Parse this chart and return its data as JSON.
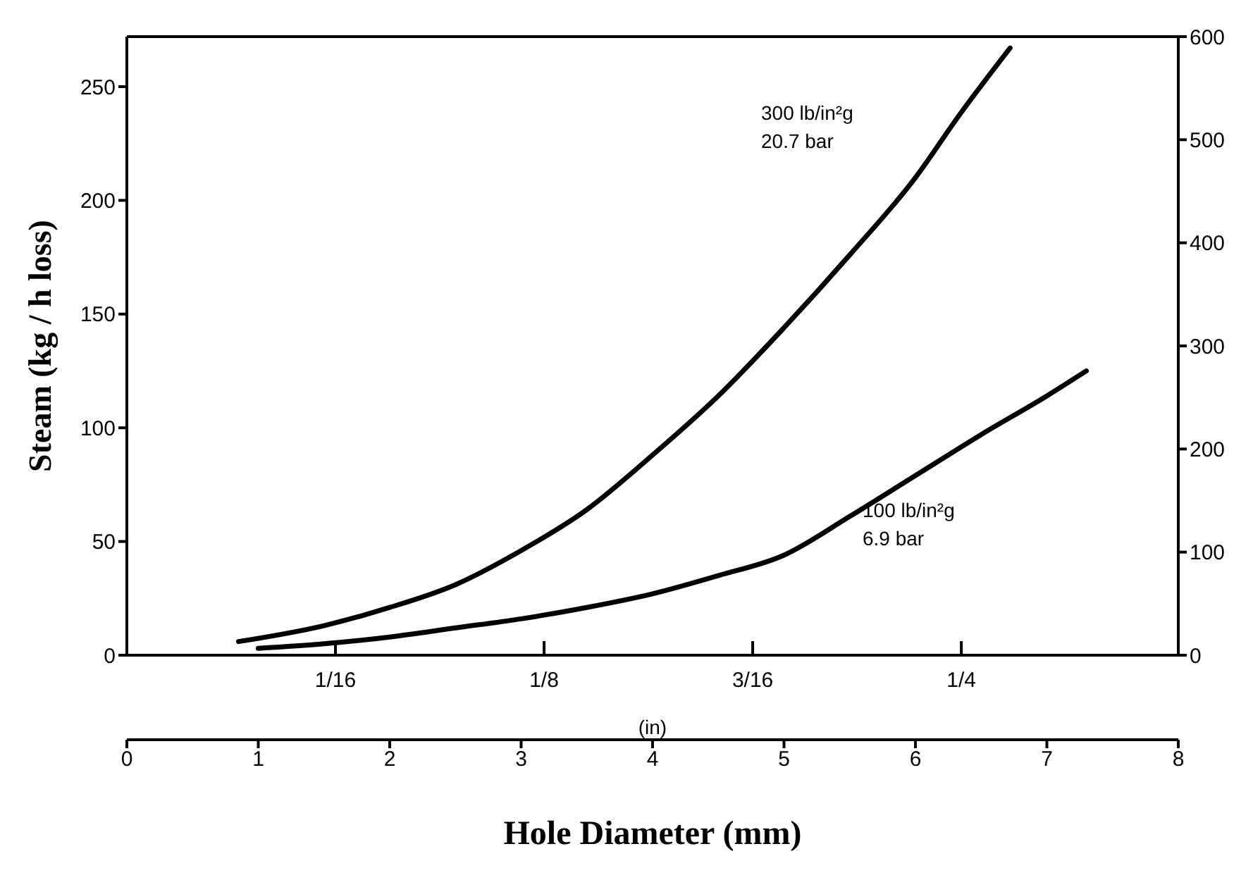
{
  "chart_data": {
    "type": "line",
    "xlabel": "Hole Diameter (mm)",
    "ylabel": "Steam (kg / h loss)",
    "x2label": "(in)",
    "xlim": [
      0,
      8
    ],
    "xticks": [
      0,
      1,
      2,
      3,
      4,
      5,
      6,
      7,
      8
    ],
    "x2lim": [
      0,
      0.315
    ],
    "x2ticks": [
      {
        "value": 0.0625,
        "label": "1/16"
      },
      {
        "value": 0.125,
        "label": "1/8"
      },
      {
        "value": 0.1875,
        "label": "3/16"
      },
      {
        "value": 0.25,
        "label": "1/4"
      }
    ],
    "ylim": [
      0,
      272
    ],
    "yticks": [
      0,
      50,
      100,
      150,
      200,
      250
    ],
    "y2lim": [
      0,
      600
    ],
    "y2ticks": [
      0,
      100,
      200,
      300,
      400,
      500,
      600
    ],
    "marker": "none",
    "line_style": "solid",
    "series": [
      {
        "color": "#000000",
        "x": [
          0.85,
          1.5,
          2,
          2.5,
          3,
          3.5,
          4,
          4.5,
          5,
          5.5,
          6,
          6.34,
          6.72
        ],
        "values": [
          6,
          13,
          21,
          31,
          46,
          64,
          88,
          114,
          144,
          176,
          210,
          238,
          267
        ]
      },
      {
        "color": "#000000",
        "x": [
          1,
          1.5,
          2,
          2.5,
          3,
          3.5,
          4,
          4.5,
          5,
          5.5,
          6,
          6.5,
          7,
          7.3
        ],
        "values": [
          3,
          5,
          8,
          12,
          16,
          21,
          27,
          35,
          44,
          61,
          79,
          97,
          114,
          125
        ]
      }
    ],
    "annotations": [
      "300 lb/in²g",
      "20.7 bar",
      "100 lb/in²g",
      "6.9 bar"
    ]
  }
}
